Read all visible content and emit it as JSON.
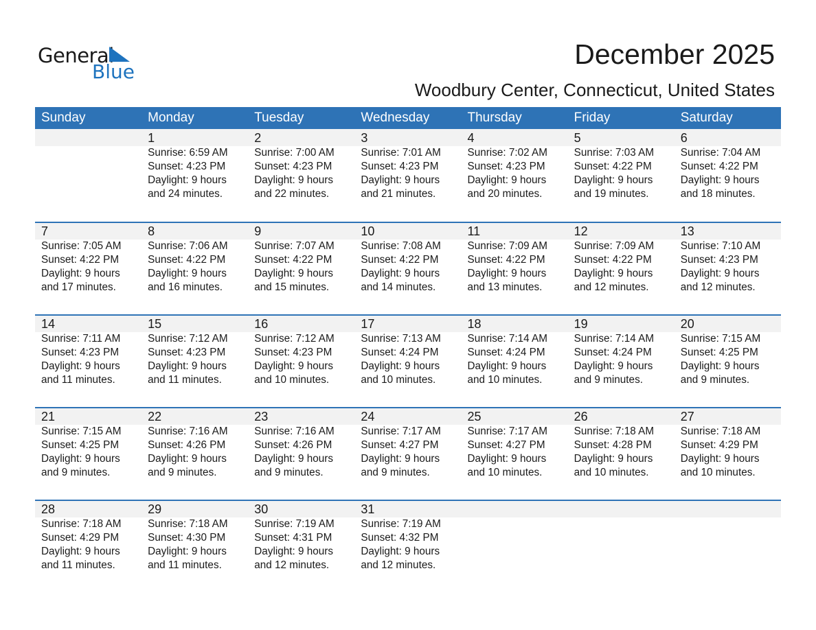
{
  "logo": {
    "word1": "General",
    "word2": "Blue",
    "color": "#1e73be"
  },
  "title": "December 2025",
  "subtitle": "Woodbury Center, Connecticut, United States",
  "header_color": "#2e73b6",
  "weekdays": [
    "Sunday",
    "Monday",
    "Tuesday",
    "Wednesday",
    "Thursday",
    "Friday",
    "Saturday"
  ],
  "weeks": [
    [
      null,
      {
        "day": "1",
        "sunrise": "Sunrise: 6:59 AM",
        "sunset": "Sunset: 4:23 PM",
        "daylight": "Daylight: 9 hours",
        "minutes": "and 24 minutes."
      },
      {
        "day": "2",
        "sunrise": "Sunrise: 7:00 AM",
        "sunset": "Sunset: 4:23 PM",
        "daylight": "Daylight: 9 hours",
        "minutes": "and 22 minutes."
      },
      {
        "day": "3",
        "sunrise": "Sunrise: 7:01 AM",
        "sunset": "Sunset: 4:23 PM",
        "daylight": "Daylight: 9 hours",
        "minutes": "and 21 minutes."
      },
      {
        "day": "4",
        "sunrise": "Sunrise: 7:02 AM",
        "sunset": "Sunset: 4:23 PM",
        "daylight": "Daylight: 9 hours",
        "minutes": "and 20 minutes."
      },
      {
        "day": "5",
        "sunrise": "Sunrise: 7:03 AM",
        "sunset": "Sunset: 4:22 PM",
        "daylight": "Daylight: 9 hours",
        "minutes": "and 19 minutes."
      },
      {
        "day": "6",
        "sunrise": "Sunrise: 7:04 AM",
        "sunset": "Sunset: 4:22 PM",
        "daylight": "Daylight: 9 hours",
        "minutes": "and 18 minutes."
      }
    ],
    [
      {
        "day": "7",
        "sunrise": "Sunrise: 7:05 AM",
        "sunset": "Sunset: 4:22 PM",
        "daylight": "Daylight: 9 hours",
        "minutes": "and 17 minutes."
      },
      {
        "day": "8",
        "sunrise": "Sunrise: 7:06 AM",
        "sunset": "Sunset: 4:22 PM",
        "daylight": "Daylight: 9 hours",
        "minutes": "and 16 minutes."
      },
      {
        "day": "9",
        "sunrise": "Sunrise: 7:07 AM",
        "sunset": "Sunset: 4:22 PM",
        "daylight": "Daylight: 9 hours",
        "minutes": "and 15 minutes."
      },
      {
        "day": "10",
        "sunrise": "Sunrise: 7:08 AM",
        "sunset": "Sunset: 4:22 PM",
        "daylight": "Daylight: 9 hours",
        "minutes": "and 14 minutes."
      },
      {
        "day": "11",
        "sunrise": "Sunrise: 7:09 AM",
        "sunset": "Sunset: 4:22 PM",
        "daylight": "Daylight: 9 hours",
        "minutes": "and 13 minutes."
      },
      {
        "day": "12",
        "sunrise": "Sunrise: 7:09 AM",
        "sunset": "Sunset: 4:22 PM",
        "daylight": "Daylight: 9 hours",
        "minutes": "and 12 minutes."
      },
      {
        "day": "13",
        "sunrise": "Sunrise: 7:10 AM",
        "sunset": "Sunset: 4:23 PM",
        "daylight": "Daylight: 9 hours",
        "minutes": "and 12 minutes."
      }
    ],
    [
      {
        "day": "14",
        "sunrise": "Sunrise: 7:11 AM",
        "sunset": "Sunset: 4:23 PM",
        "daylight": "Daylight: 9 hours",
        "minutes": "and 11 minutes."
      },
      {
        "day": "15",
        "sunrise": "Sunrise: 7:12 AM",
        "sunset": "Sunset: 4:23 PM",
        "daylight": "Daylight: 9 hours",
        "minutes": "and 11 minutes."
      },
      {
        "day": "16",
        "sunrise": "Sunrise: 7:12 AM",
        "sunset": "Sunset: 4:23 PM",
        "daylight": "Daylight: 9 hours",
        "minutes": "and 10 minutes."
      },
      {
        "day": "17",
        "sunrise": "Sunrise: 7:13 AM",
        "sunset": "Sunset: 4:24 PM",
        "daylight": "Daylight: 9 hours",
        "minutes": "and 10 minutes."
      },
      {
        "day": "18",
        "sunrise": "Sunrise: 7:14 AM",
        "sunset": "Sunset: 4:24 PM",
        "daylight": "Daylight: 9 hours",
        "minutes": "and 10 minutes."
      },
      {
        "day": "19",
        "sunrise": "Sunrise: 7:14 AM",
        "sunset": "Sunset: 4:24 PM",
        "daylight": "Daylight: 9 hours",
        "minutes": "and 9 minutes."
      },
      {
        "day": "20",
        "sunrise": "Sunrise: 7:15 AM",
        "sunset": "Sunset: 4:25 PM",
        "daylight": "Daylight: 9 hours",
        "minutes": "and 9 minutes."
      }
    ],
    [
      {
        "day": "21",
        "sunrise": "Sunrise: 7:15 AM",
        "sunset": "Sunset: 4:25 PM",
        "daylight": "Daylight: 9 hours",
        "minutes": "and 9 minutes."
      },
      {
        "day": "22",
        "sunrise": "Sunrise: 7:16 AM",
        "sunset": "Sunset: 4:26 PM",
        "daylight": "Daylight: 9 hours",
        "minutes": "and 9 minutes."
      },
      {
        "day": "23",
        "sunrise": "Sunrise: 7:16 AM",
        "sunset": "Sunset: 4:26 PM",
        "daylight": "Daylight: 9 hours",
        "minutes": "and 9 minutes."
      },
      {
        "day": "24",
        "sunrise": "Sunrise: 7:17 AM",
        "sunset": "Sunset: 4:27 PM",
        "daylight": "Daylight: 9 hours",
        "minutes": "and 9 minutes."
      },
      {
        "day": "25",
        "sunrise": "Sunrise: 7:17 AM",
        "sunset": "Sunset: 4:27 PM",
        "daylight": "Daylight: 9 hours",
        "minutes": "and 10 minutes."
      },
      {
        "day": "26",
        "sunrise": "Sunrise: 7:18 AM",
        "sunset": "Sunset: 4:28 PM",
        "daylight": "Daylight: 9 hours",
        "minutes": "and 10 minutes."
      },
      {
        "day": "27",
        "sunrise": "Sunrise: 7:18 AM",
        "sunset": "Sunset: 4:29 PM",
        "daylight": "Daylight: 9 hours",
        "minutes": "and 10 minutes."
      }
    ],
    [
      {
        "day": "28",
        "sunrise": "Sunrise: 7:18 AM",
        "sunset": "Sunset: 4:29 PM",
        "daylight": "Daylight: 9 hours",
        "minutes": "and 11 minutes."
      },
      {
        "day": "29",
        "sunrise": "Sunrise: 7:18 AM",
        "sunset": "Sunset: 4:30 PM",
        "daylight": "Daylight: 9 hours",
        "minutes": "and 11 minutes."
      },
      {
        "day": "30",
        "sunrise": "Sunrise: 7:19 AM",
        "sunset": "Sunset: 4:31 PM",
        "daylight": "Daylight: 9 hours",
        "minutes": "and 12 minutes."
      },
      {
        "day": "31",
        "sunrise": "Sunrise: 7:19 AM",
        "sunset": "Sunset: 4:32 PM",
        "daylight": "Daylight: 9 hours",
        "minutes": "and 12 minutes."
      },
      null,
      null,
      null
    ]
  ]
}
